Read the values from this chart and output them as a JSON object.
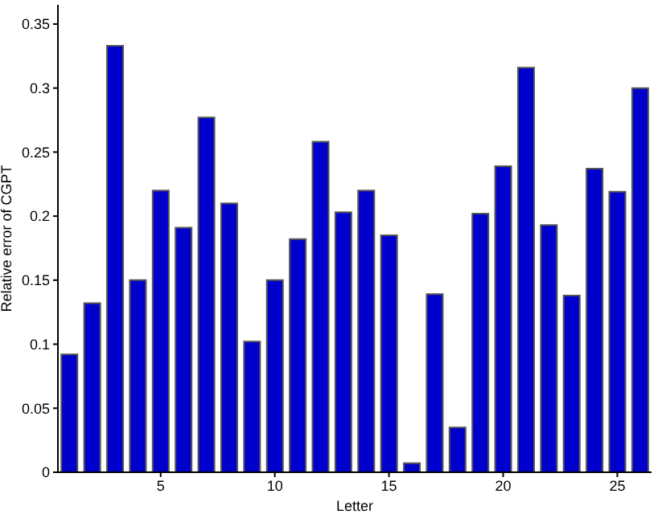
{
  "chart_data": {
    "type": "bar",
    "xlabel": "Letter",
    "ylabel": "Relative error of CGPT",
    "x": [
      1,
      2,
      3,
      4,
      5,
      6,
      7,
      8,
      9,
      10,
      11,
      12,
      13,
      14,
      15,
      16,
      17,
      18,
      19,
      20,
      21,
      22,
      23,
      24,
      25,
      26
    ],
    "values": [
      0.092,
      0.132,
      0.333,
      0.15,
      0.22,
      0.191,
      0.277,
      0.21,
      0.102,
      0.15,
      0.182,
      0.258,
      0.203,
      0.22,
      0.185,
      0.007,
      0.139,
      0.035,
      0.202,
      0.239,
      0.316,
      0.193,
      0.138,
      0.237,
      0.219,
      0.3
    ],
    "color": "#0000cc",
    "xlim": [
      0.5,
      26.5
    ],
    "xticks": [
      5,
      10,
      15,
      20,
      25
    ],
    "ylim": [
      0,
      0.365
    ],
    "yticks": [
      0,
      0.05,
      0.1,
      0.15,
      0.2,
      0.25,
      0.3,
      0.35
    ],
    "grid": false,
    "legend": false
  }
}
